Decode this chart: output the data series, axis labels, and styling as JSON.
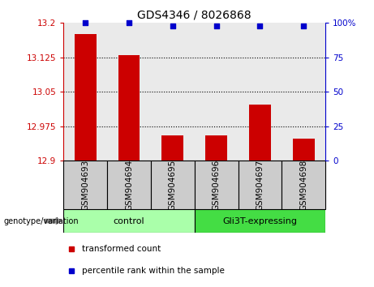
{
  "title": "GDS4346 / 8026868",
  "categories": [
    "GSM904693",
    "GSM904694",
    "GSM904695",
    "GSM904696",
    "GSM904697",
    "GSM904698"
  ],
  "transformed_counts": [
    13.175,
    13.13,
    12.955,
    12.955,
    13.022,
    12.948
  ],
  "percentile_ranks": [
    100,
    100,
    98,
    98,
    98,
    98
  ],
  "ylim_left": [
    12.9,
    13.2
  ],
  "ylim_right": [
    0,
    100
  ],
  "yticks_left": [
    12.9,
    12.975,
    13.05,
    13.125,
    13.2
  ],
  "ytick_labels_left": [
    "12.9",
    "12.975",
    "13.05",
    "13.125",
    "13.2"
  ],
  "yticks_right": [
    0,
    25,
    50,
    75,
    100
  ],
  "ytick_labels_right": [
    "0",
    "25",
    "50",
    "75",
    "100%"
  ],
  "hlines": [
    12.975,
    13.05,
    13.125
  ],
  "bar_color": "#cc0000",
  "scatter_color": "#0000cc",
  "col_bg_color": "#cccccc",
  "groups": [
    {
      "label": "control",
      "indices": [
        0,
        1,
        2
      ],
      "color": "#aaffaa"
    },
    {
      "label": "Gli3T-expressing",
      "indices": [
        3,
        4,
        5
      ],
      "color": "#44dd44"
    }
  ],
  "legend_items": [
    {
      "label": "transformed count",
      "color": "#cc0000"
    },
    {
      "label": "percentile rank within the sample",
      "color": "#0000cc"
    }
  ],
  "genotype_label": "genotype/variation",
  "title_fontsize": 10,
  "tick_fontsize": 7.5,
  "label_fontsize": 8
}
